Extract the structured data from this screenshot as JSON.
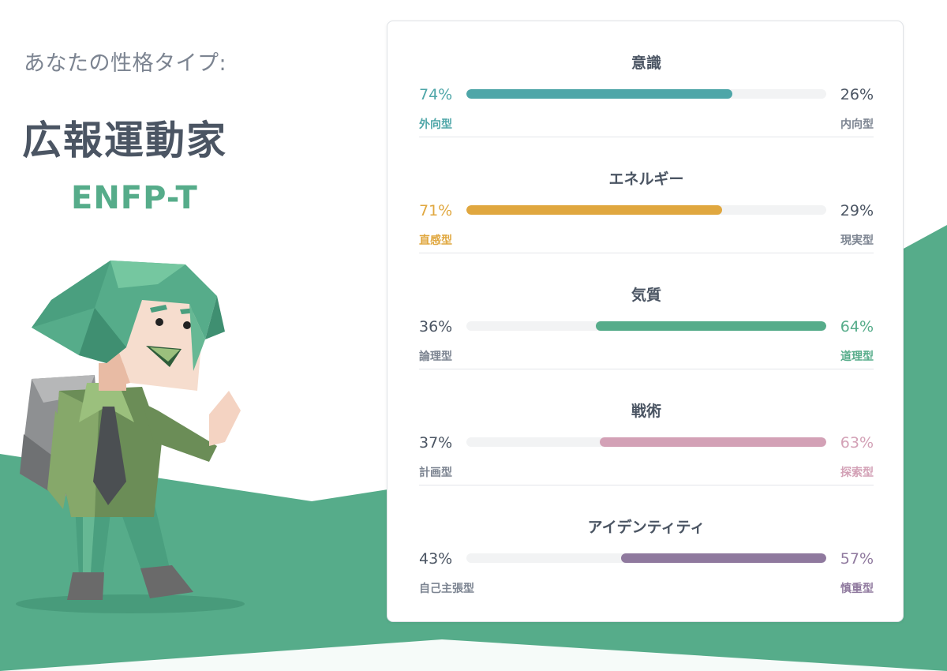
{
  "header": {
    "subtitle": "あなたの性格タイプ:",
    "type_name": "広報運動家",
    "type_code": "ENFP-T"
  },
  "colors": {
    "accent_green": "#56ac8a",
    "teal": "#4ea6a8",
    "amber": "#e0a73f",
    "green": "#56ac8a",
    "pink": "#d3a1b6",
    "purple": "#8f799e",
    "neutral_text": "#4b5563"
  },
  "traits": [
    {
      "title": "意識",
      "left_pct": "74%",
      "right_pct": "26%",
      "left_label": "外向型",
      "right_label": "内向型",
      "dominant": "left",
      "fill_fraction": 0.74,
      "color": "#4ea6a8"
    },
    {
      "title": "エネルギー",
      "left_pct": "71%",
      "right_pct": "29%",
      "left_label": "直感型",
      "right_label": "現実型",
      "dominant": "left",
      "fill_fraction": 0.71,
      "color": "#e0a73f"
    },
    {
      "title": "気質",
      "left_pct": "36%",
      "right_pct": "64%",
      "left_label": "論理型",
      "right_label": "道理型",
      "dominant": "right",
      "fill_fraction": 0.64,
      "color": "#56ac8a"
    },
    {
      "title": "戦術",
      "left_pct": "37%",
      "right_pct": "63%",
      "left_label": "計画型",
      "right_label": "探索型",
      "dominant": "right",
      "fill_fraction": 0.63,
      "color": "#d3a1b6"
    },
    {
      "title": "アイデンティティ",
      "left_pct": "43%",
      "right_pct": "57%",
      "left_label": "自己主張型",
      "right_label": "慎重型",
      "dominant": "right",
      "fill_fraction": 0.57,
      "color": "#8f799e"
    }
  ]
}
